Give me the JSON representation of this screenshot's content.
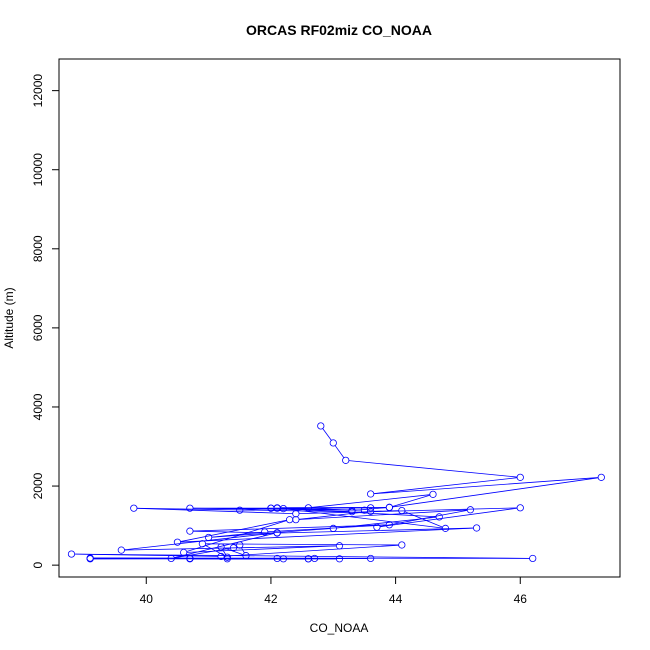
{
  "chart_data": {
    "type": "line",
    "title": "ORCAS RF02miz CO_NOAA",
    "xlabel": "CO_NOAA",
    "ylabel": "Altitude (m)",
    "xlim": [
      38.6,
      47.6
    ],
    "ylim": [
      -300,
      12800
    ],
    "xticks": [
      "40",
      "42",
      "44",
      "46"
    ],
    "yticks": [
      "0",
      "2000",
      "4000",
      "6000",
      "8000",
      "10000",
      "12000"
    ],
    "series_color": "#0000ff",
    "points": [
      [
        42.8,
        3520
      ],
      [
        43.0,
        3090
      ],
      [
        43.2,
        2650
      ],
      [
        46.0,
        2220
      ],
      [
        43.6,
        1800
      ],
      [
        47.3,
        2220
      ],
      [
        43.9,
        1460
      ],
      [
        44.6,
        1790
      ],
      [
        42.6,
        1450
      ],
      [
        43.3,
        1380
      ],
      [
        43.9,
        1460
      ],
      [
        42.1,
        1450
      ],
      [
        43.6,
        1450
      ],
      [
        42.0,
        1440
      ],
      [
        41.5,
        1390
      ],
      [
        42.1,
        1440
      ],
      [
        40.7,
        1440
      ],
      [
        43.5,
        1390
      ],
      [
        42.0,
        1440
      ],
      [
        43.3,
        1350
      ],
      [
        39.8,
        1440
      ],
      [
        42.4,
        1300
      ],
      [
        46.0,
        1450
      ],
      [
        43.7,
        960
      ],
      [
        45.2,
        1400
      ],
      [
        42.4,
        1150
      ],
      [
        43.6,
        1360
      ],
      [
        44.1,
        1380
      ],
      [
        44.8,
        930
      ],
      [
        42.2,
        1430
      ],
      [
        44.7,
        1220
      ],
      [
        43.0,
        930
      ],
      [
        41.0,
        700
      ],
      [
        41.9,
        840
      ],
      [
        43.9,
        1020
      ],
      [
        40.7,
        860
      ],
      [
        42.1,
        810
      ],
      [
        45.3,
        940
      ],
      [
        40.5,
        580
      ],
      [
        42.3,
        1150
      ],
      [
        40.6,
        320
      ],
      [
        43.1,
        490
      ],
      [
        39.6,
        380
      ],
      [
        42.1,
        820
      ],
      [
        40.4,
        170
      ],
      [
        41.4,
        440
      ],
      [
        41.5,
        510
      ],
      [
        41.6,
        240
      ],
      [
        41.2,
        460
      ],
      [
        41.3,
        200
      ],
      [
        40.9,
        540
      ],
      [
        44.1,
        510
      ],
      [
        41.2,
        220
      ],
      [
        38.8,
        280
      ],
      [
        46.2,
        170
      ],
      [
        39.1,
        180
      ],
      [
        42.6,
        160
      ],
      [
        39.1,
        170
      ],
      [
        42.2,
        160
      ],
      [
        41.3,
        160
      ],
      [
        43.1,
        160
      ],
      [
        40.7,
        160
      ],
      [
        43.6,
        170
      ],
      [
        40.7,
        170
      ],
      [
        42.6,
        160
      ],
      [
        39.1,
        160
      ],
      [
        42.1,
        170
      ],
      [
        40.7,
        170
      ],
      [
        42.7,
        170
      ]
    ]
  }
}
